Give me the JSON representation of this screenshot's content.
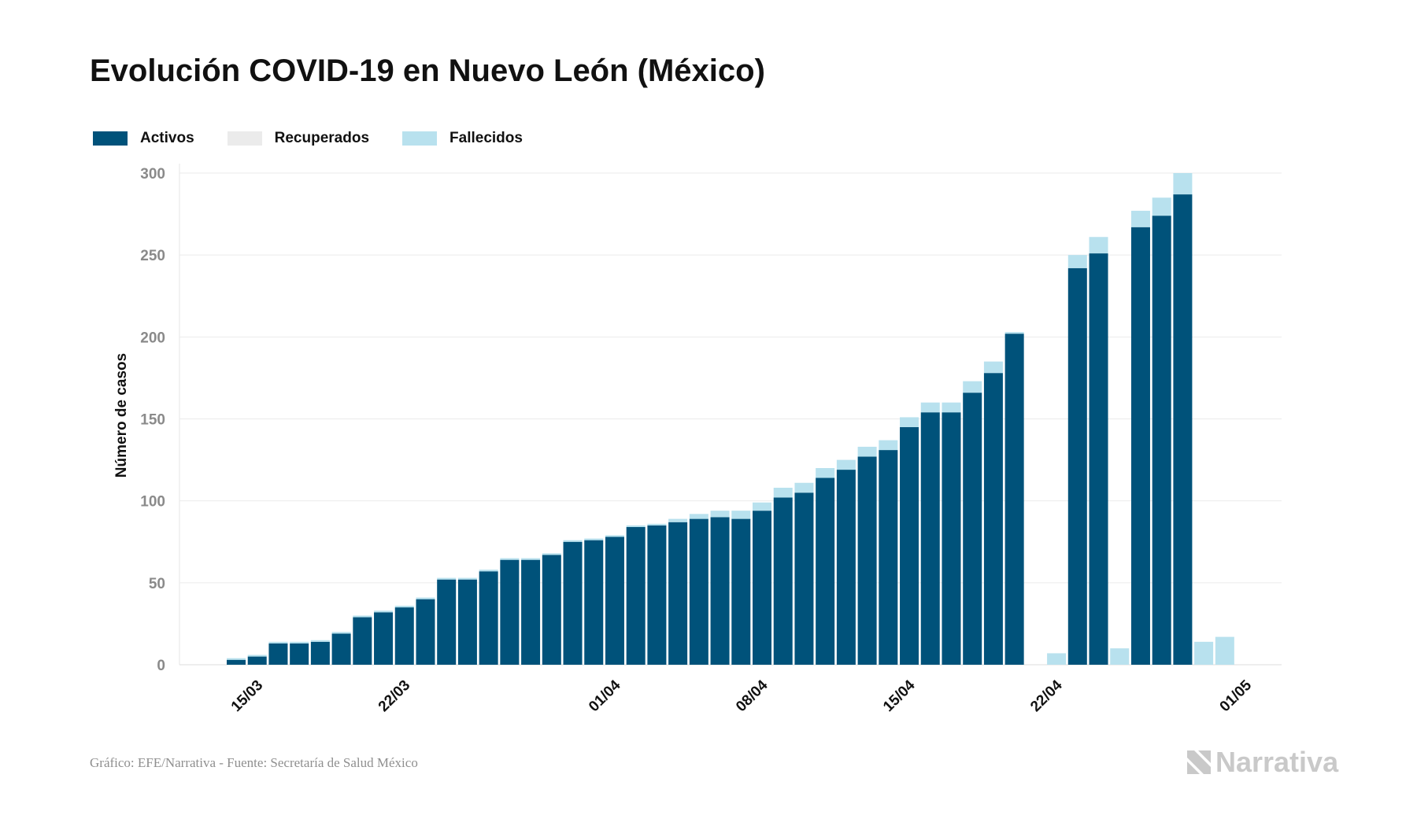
{
  "header": {
    "title": "Evolución COVID-19 en Nuevo León (México)"
  },
  "legend": {
    "items": [
      {
        "label": "Activos",
        "color": "#00527a"
      },
      {
        "label": "Recuperados",
        "color": "#ebebeb"
      },
      {
        "label": "Fallecidos",
        "color": "#b8e1ee"
      }
    ]
  },
  "footer": {
    "source": "Gráfico: EFE/Narrativa - Fuente: Secretaría de Salud México",
    "logo_text": "Narrativa",
    "logo_icon": "narrativa-logo-icon"
  },
  "chart_data": {
    "type": "bar",
    "stacked": true,
    "ylabel": "Número de casos",
    "ylim": [
      0,
      300
    ],
    "yticks": [
      0,
      50,
      100,
      150,
      200,
      250,
      300
    ],
    "grid": true,
    "legend_position": "top-left",
    "x_tick_labels": [
      {
        "label": "15/03",
        "index": 1
      },
      {
        "label": "22/03",
        "index": 8
      },
      {
        "label": "01/04",
        "index": 18
      },
      {
        "label": "08/04",
        "index": 25
      },
      {
        "label": "15/04",
        "index": 32
      },
      {
        "label": "22/04",
        "index": 39
      },
      {
        "label": "01/05",
        "index": 48
      }
    ],
    "categories": [
      "13/03",
      "14/03",
      "15/03",
      "16/03",
      "17/03",
      "18/03",
      "19/03",
      "20/03",
      "21/03",
      "22/03",
      "23/03",
      "24/03",
      "25/03",
      "26/03",
      "27/03",
      "28/03",
      "29/03",
      "30/03",
      "31/03",
      "01/04",
      "02/04",
      "03/04",
      "04/04",
      "05/04",
      "06/04",
      "07/04",
      "08/04",
      "09/04",
      "10/04",
      "11/04",
      "12/04",
      "13/04",
      "14/04",
      "15/04",
      "16/04",
      "17/04",
      "18/04",
      "19/04",
      "20/04",
      "21/04",
      "22/04",
      "23/04",
      "24/04",
      "25/04",
      "26/04",
      "27/04",
      "28/04",
      "29/04",
      "30/04"
    ],
    "series": [
      {
        "name": "Activos",
        "color": "#00527a",
        "values": [
          3,
          5,
          13,
          13,
          14,
          19,
          29,
          32,
          35,
          40,
          52,
          52,
          57,
          64,
          64,
          67,
          75,
          76,
          78,
          84,
          85,
          87,
          89,
          90,
          89,
          94,
          102,
          105,
          114,
          119,
          127,
          131,
          145,
          154,
          154,
          166,
          178,
          202,
          0,
          0,
          242,
          251,
          0,
          267,
          274,
          287,
          0,
          0,
          0
        ]
      },
      {
        "name": "Recuperados",
        "color": "#ebebeb",
        "values": [
          0,
          0,
          0,
          0,
          0,
          0,
          0,
          0,
          0,
          0,
          0,
          0,
          0,
          0,
          0,
          0,
          0,
          0,
          0,
          0,
          0,
          0,
          0,
          0,
          0,
          0,
          0,
          0,
          0,
          0,
          0,
          0,
          0,
          0,
          0,
          0,
          0,
          0,
          0,
          0,
          0,
          0,
          0,
          0,
          0,
          0,
          0,
          0,
          0
        ]
      },
      {
        "name": "Fallecidos",
        "color": "#b8e1ee",
        "values": [
          1,
          1,
          1,
          1,
          1,
          1,
          1,
          1,
          1,
          1,
          1,
          1,
          1,
          1,
          1,
          1,
          1,
          1,
          1,
          1,
          1,
          2,
          3,
          4,
          5,
          5,
          6,
          6,
          6,
          6,
          6,
          6,
          6,
          6,
          6,
          7,
          7,
          1,
          0,
          7,
          8,
          10,
          10,
          10,
          11,
          13,
          14,
          17,
          0
        ]
      }
    ]
  }
}
